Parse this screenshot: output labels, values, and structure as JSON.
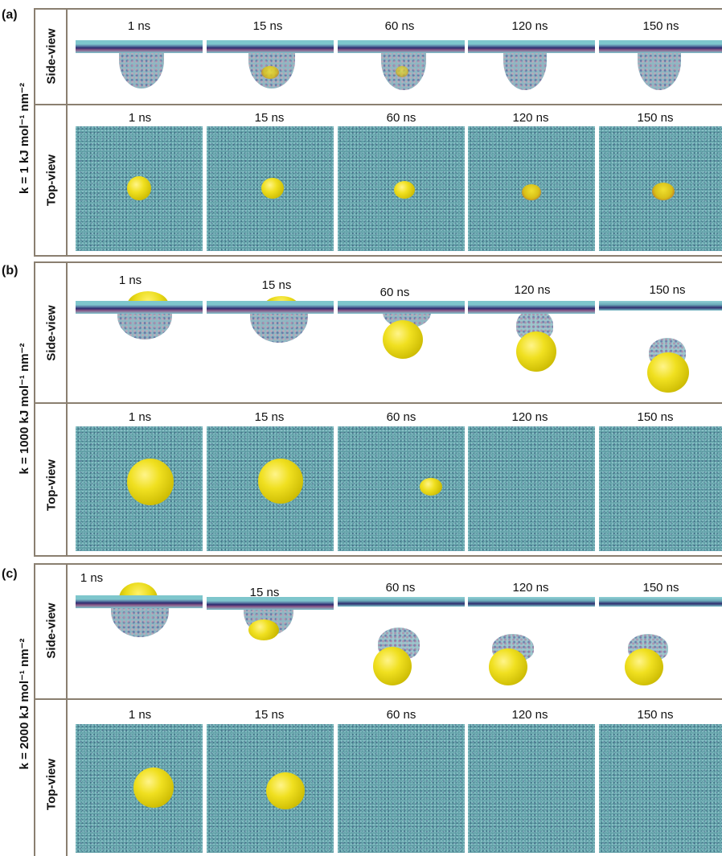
{
  "panels": [
    {
      "letter": "(a)",
      "k_label": "k = 1 kJ mol⁻¹ nm⁻²",
      "side_label": "Side-view",
      "top_label": "Top-view",
      "side_times": [
        "1 ns",
        "15 ns",
        "60 ns",
        "120 ns",
        "150 ns"
      ],
      "top_times": [
        "1 ns",
        "15 ns",
        "60 ns",
        "120 ns",
        "150 ns"
      ]
    },
    {
      "letter": "(b)",
      "k_label": "k = 1000 kJ mol⁻¹ nm⁻²",
      "side_label": "Side-view",
      "top_label": "Top-view",
      "side_times": [
        "1 ns",
        "15 ns",
        "60 ns",
        "120 ns",
        "150 ns"
      ],
      "top_times": [
        "1 ns",
        "15 ns",
        "60 ns",
        "120 ns",
        "150 ns"
      ]
    },
    {
      "letter": "(c)",
      "k_label": "k = 2000 kJ mol⁻¹ nm⁻²",
      "side_label": "Side-view",
      "top_label": "Top-view",
      "side_times": [
        "1 ns",
        "15 ns",
        "60 ns",
        "120 ns",
        "150 ns"
      ],
      "top_times": [
        "1 ns",
        "15 ns",
        "60 ns",
        "120 ns",
        "150 ns"
      ]
    }
  ],
  "colors": {
    "frame": "#8a7f70",
    "water_lipid": "#5f9ea5",
    "nanoparticle": "#f0e020"
  }
}
